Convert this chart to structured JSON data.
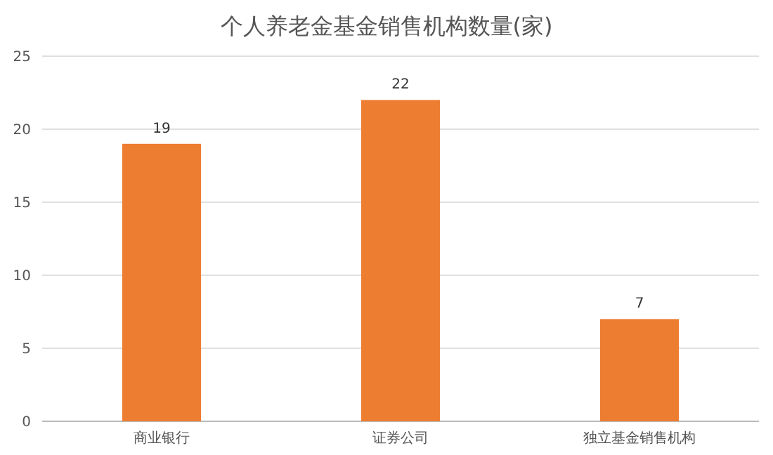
{
  "chart_data": {
    "type": "bar",
    "title": "个人养老金基金销售机构数量(家)",
    "categories": [
      "商业银行",
      "证券公司",
      "独立基金销售机构"
    ],
    "values": [
      19,
      22,
      7
    ],
    "color": "#ed7d31",
    "ylim": [
      0,
      25
    ],
    "yticks": [
      0,
      5,
      10,
      15,
      20,
      25
    ],
    "grid": "y",
    "data_labels": true
  }
}
